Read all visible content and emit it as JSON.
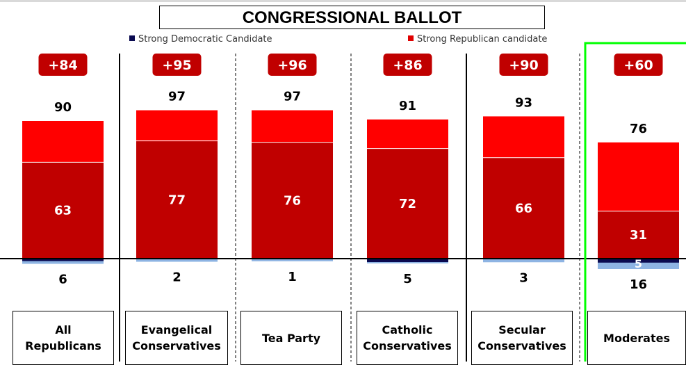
{
  "chart_data": {
    "type": "bar",
    "title": "CONGRESSIONAL BALLOT",
    "legend": [
      {
        "label": "Strong Democratic Candidate",
        "color": "#0a0a50"
      },
      {
        "label": "Strong Republican candidate",
        "color": "#e00000"
      }
    ],
    "colors": {
      "strong_republican": "#c00000",
      "total_republican": "#ff0000",
      "strong_democratic": "#0a0a50",
      "total_democratic": "#8eb4e3",
      "margin_badge": "#c00000",
      "highlight_border": "#00ff00"
    },
    "categories": [
      {
        "label": "All Republicans",
        "lines": [
          "All",
          "Republicans"
        ],
        "total_republican": 90,
        "strong_republican": 63,
        "total_democratic": 6,
        "strong_democratic": 2,
        "margin": "+84",
        "strong_label": "63",
        "dem_strong_label": "",
        "highlighted": false
      },
      {
        "label": "Evangelical Conservatives",
        "lines": [
          "Evangelical",
          "Conservatives"
        ],
        "total_republican": 97,
        "strong_republican": 77,
        "total_democratic": 2,
        "strong_democratic": 0,
        "margin": "+95",
        "strong_label": "77",
        "dem_strong_label": "",
        "highlighted": false
      },
      {
        "label": "Tea Party",
        "lines": [
          "Tea Party"
        ],
        "total_republican": 97,
        "strong_republican": 76,
        "total_democratic": 1,
        "strong_democratic": 0,
        "margin": "+96",
        "strong_label": "76",
        "dem_strong_label": "",
        "highlighted": false
      },
      {
        "label": "Catholic Conservatives",
        "lines": [
          "Catholic",
          "Conservatives"
        ],
        "total_republican": 91,
        "strong_republican": 72,
        "total_democratic": 5,
        "strong_democratic": 4,
        "margin": "+86",
        "strong_label": "72",
        "dem_strong_label": "",
        "highlighted": false
      },
      {
        "label": "Secular Conservatives",
        "lines": [
          "Secular",
          "Conservatives"
        ],
        "total_republican": 93,
        "strong_republican": 66,
        "total_democratic": 3,
        "strong_democratic": 0,
        "margin": "+90",
        "strong_label": "66",
        "dem_strong_label": "",
        "highlighted": false
      },
      {
        "label": "Moderates",
        "lines": [
          "Moderates"
        ],
        "total_republican": 76,
        "strong_republican": 31,
        "total_democratic": 16,
        "strong_democratic": 5,
        "margin": "+60",
        "strong_label": "31",
        "dem_strong_label": "5",
        "highlighted": true
      }
    ]
  }
}
